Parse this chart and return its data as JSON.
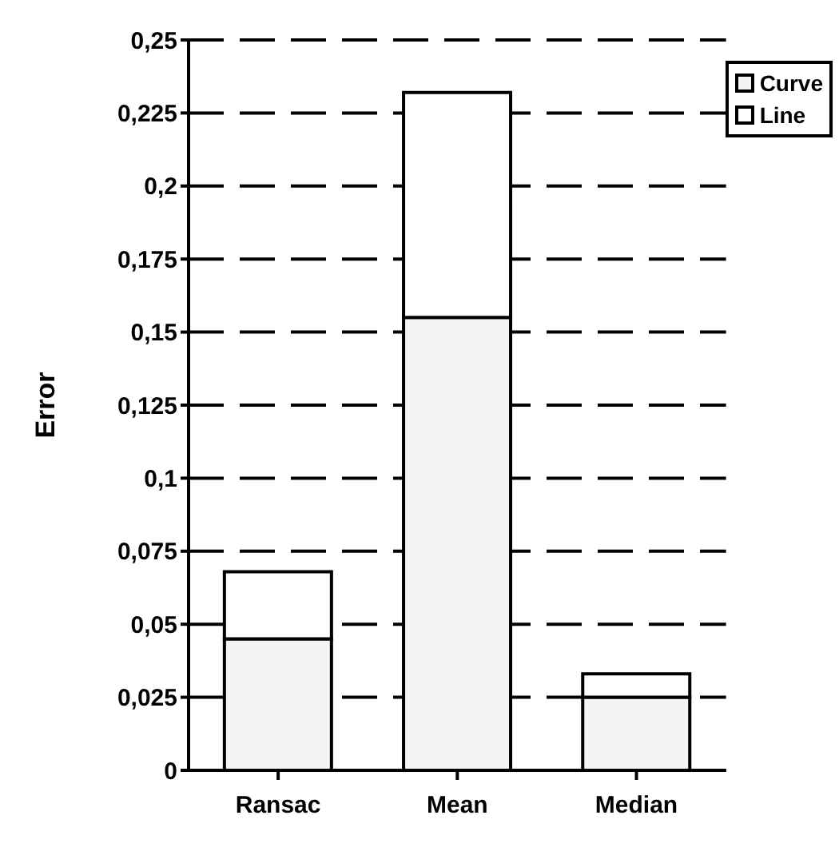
{
  "chart_data": {
    "type": "bar",
    "stacked": true,
    "ylabel": "Error",
    "categories": [
      "Ransac",
      "Mean",
      "Median"
    ],
    "series": [
      {
        "name": "Curve",
        "color": "#f4f4f4",
        "values": [
          0.045,
          0.155,
          0.025
        ]
      },
      {
        "name": "Line",
        "color": "#ffffff",
        "values": [
          0.023,
          0.077,
          0.008
        ]
      }
    ],
    "ylim": [
      0,
      0.25
    ],
    "yticks": [
      0,
      {
        "value": 0.025,
        "label": "0,025"
      },
      {
        "value": 0.05,
        "label": "0,05"
      },
      {
        "value": 0.075,
        "label": "0,075"
      },
      {
        "value": 0.1,
        "label": "0,1"
      },
      {
        "value": 0.125,
        "label": "0,125"
      },
      {
        "value": 0.15,
        "label": "0,15"
      },
      {
        "value": 0.175,
        "label": "0,175"
      },
      {
        "value": 0.2,
        "label": "0,2"
      },
      {
        "value": 0.225,
        "label": "0,225"
      },
      {
        "value": 0.25,
        "label": "0,25"
      }
    ],
    "grid": "y",
    "legend": "top right"
  }
}
